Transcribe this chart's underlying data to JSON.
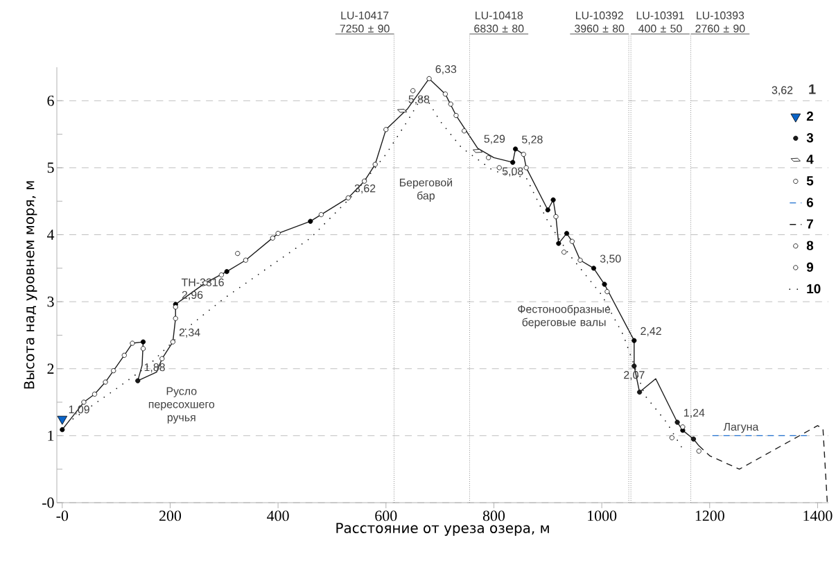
{
  "chart_data": {
    "type": "line",
    "xlabel": "Расстояние от уреза озера, м",
    "ylabel": "Высота над уровнем моря, м",
    "xlim": [
      -10,
      1420
    ],
    "ylim": [
      0,
      6.5
    ],
    "xticks": [
      {
        "value": 0,
        "label": "-0"
      },
      200,
      400,
      600,
      800,
      1000,
      1200,
      1400
    ],
    "yticks": [
      {
        "value": 0,
        "label": "-0"
      },
      {
        "value": 0.5,
        "label": null
      },
      1,
      {
        "value": 1.5,
        "label": null
      },
      2,
      {
        "value": 2.5,
        "label": null
      },
      3,
      {
        "value": 3.5,
        "label": null
      },
      4,
      {
        "value": 4.5,
        "label": null
      },
      5,
      {
        "value": 5.5,
        "label": null
      },
      6
    ],
    "grid": "y",
    "legend": "top right",
    "series": [
      {
        "type": "line",
        "color": "#1a1a1a",
        "line_style": "solid",
        "marker": "none",
        "x": [
          0,
          40,
          60,
          80,
          95,
          115,
          130,
          150,
          148,
          140,
          175,
          185,
          205,
          210,
          210,
          265,
          305,
          340,
          400,
          460,
          530,
          560,
          580,
          600,
          640,
          680,
          710,
          730,
          770,
          800,
          835,
          840,
          855,
          860,
          900,
          910,
          915,
          920,
          935,
          945,
          960,
          985,
          1005,
          1060,
          1060,
          1070,
          1100,
          1140,
          1150,
          1170,
          1180
        ],
        "values": [
          1.09,
          1.5,
          1.62,
          1.8,
          1.97,
          2.2,
          2.38,
          2.4,
          2.05,
          1.82,
          1.95,
          2.15,
          2.4,
          2.75,
          2.96,
          3.28,
          3.45,
          3.62,
          4.02,
          4.2,
          4.55,
          4.8,
          5.05,
          5.57,
          5.88,
          6.33,
          6.1,
          5.78,
          5.29,
          5.15,
          5.08,
          5.28,
          5.2,
          5.0,
          4.37,
          4.52,
          4.27,
          3.87,
          4.02,
          3.9,
          3.62,
          3.5,
          3.26,
          2.42,
          2.04,
          1.65,
          1.85,
          1.2,
          1.08,
          0.95,
          0.85
        ]
      },
      {
        "type": "scatter",
        "color": "#000000",
        "marker": "circle",
        "x": [
          0,
          150,
          210,
          305,
          460,
          835,
          840,
          900,
          910,
          920,
          935,
          985,
          1005,
          1060,
          1150
        ],
        "values": [
          1.09,
          2.4,
          2.96,
          3.45,
          4.2,
          5.08,
          5.28,
          4.37,
          4.52,
          3.87,
          4.02,
          3.5,
          3.26,
          2.42,
          1.08
        ]
      },
      {
        "type": "scatter",
        "name": "2",
        "color": "#0a64c8",
        "marker": "triangle",
        "x": [
          0
        ],
        "values": [
          1.25
        ]
      },
      {
        "type": "scatter",
        "name": "3",
        "color": "#1a1a1a",
        "marker": "circle",
        "x": [
          140,
          1060,
          1070,
          1140,
          1170
        ],
        "values": [
          1.82,
          2.04,
          1.65,
          1.2,
          0.95
        ]
      },
      {
        "type": "scatter",
        "name": "4",
        "color": "#ffffff",
        "marker": "diamond",
        "x": [
          630,
          770
        ],
        "values": [
          5.85,
          5.25
        ]
      },
      {
        "type": "scatter",
        "name": "5",
        "color": "#ffffff",
        "marker": "circle",
        "x": [
          205,
          680
        ],
        "values": [
          2.4,
          6.33
        ]
      },
      {
        "type": "line",
        "name": "6",
        "color": "#1f6fd0",
        "line_style": "dashed",
        "marker": "none",
        "x": [
          1205,
          1380
        ],
        "values": [
          1.0,
          1.0
        ]
      },
      {
        "type": "line",
        "name": "7",
        "color": "#1a1a1a",
        "line_style": "dashed",
        "marker": "none",
        "x": [
          1180,
          1200,
          1255,
          1400,
          1410,
          1418
        ],
        "values": [
          0.85,
          0.7,
          0.5,
          1.15,
          1.1,
          0.0
        ]
      },
      {
        "type": "scatter",
        "name": "8",
        "color": "#ffffff",
        "marker": "circle",
        "x": [
          40,
          80,
          115,
          185,
          210,
          265,
          340,
          400,
          530,
          580,
          600,
          710,
          730,
          790,
          855,
          915,
          945,
          960,
          1010,
          1130
        ],
        "values": [
          1.5,
          1.8,
          2.2,
          2.15,
          2.92,
          3.28,
          3.62,
          4.02,
          4.55,
          5.05,
          5.57,
          6.1,
          5.78,
          5.15,
          5.2,
          4.27,
          3.9,
          3.62,
          3.15,
          0.97
        ]
      },
      {
        "type": "scatter",
        "name": "9",
        "color": "#ffffff",
        "marker": "circle",
        "x": [
          60,
          95,
          130,
          150,
          210,
          295,
          325,
          390,
          480,
          560,
          650,
          720,
          745,
          810,
          860,
          930,
          1150,
          1180
        ],
        "values": [
          1.62,
          1.97,
          2.38,
          2.3,
          2.75,
          3.4,
          3.72,
          3.95,
          4.3,
          4.8,
          6.15,
          5.95,
          5.55,
          5.0,
          5.0,
          3.74,
          1.13,
          0.77
        ]
      },
      {
        "type": "line",
        "name": "10",
        "color": "#1a1a1a",
        "line_style": "dotted",
        "marker": "none",
        "x": [
          20,
          100,
          160,
          230,
          300,
          380,
          460,
          540,
          600,
          640,
          670,
          700,
          740,
          800,
          860,
          900,
          940,
          1000,
          1040,
          1080,
          1120,
          1150
        ],
        "values": [
          1.25,
          1.7,
          2.05,
          2.6,
          3.05,
          3.5,
          3.95,
          4.6,
          5.2,
          5.7,
          6.1,
          5.7,
          5.3,
          4.95,
          4.85,
          4.2,
          3.7,
          3.1,
          2.5,
          1.6,
          1.2,
          0.8
        ]
      }
    ],
    "ref_lines": [
      {
        "axis": "x",
        "value": 615,
        "label": "LU-10417 7250 ± 90",
        "color": "#8c8c8c",
        "line_style": "dotted"
      },
      {
        "axis": "x",
        "value": 755,
        "label": "LU-10418 6830 ± 80",
        "color": "#8c8c8c",
        "line_style": "dotted"
      },
      {
        "axis": "x",
        "value": 1050,
        "label": "LU-10392 3960 ± 80",
        "color": "#8c8c8c",
        "line_style": "dotted"
      },
      {
        "axis": "x",
        "value": 1054,
        "label": "LU-10391 400 ± 50",
        "color": "#8c8c8c",
        "line_style": "dotted"
      },
      {
        "axis": "x",
        "value": 1165,
        "label": "LU-10393 2760 ± 90",
        "color": "#8c8c8c",
        "line_style": "dotted"
      }
    ],
    "annotations": [
      {
        "text": "1,09",
        "x": 0,
        "y": 1.25
      },
      {
        "text": "1,88",
        "x": 140,
        "y": 1.88
      },
      {
        "text": "2,34",
        "x": 205,
        "y": 2.4
      },
      {
        "text": "2,96",
        "x": 210,
        "y": 2.96
      },
      {
        "text": "ТН-3316",
        "x": 210,
        "y": 2.96
      },
      {
        "text": "3,62",
        "x": 530,
        "y": 4.55
      },
      {
        "text": "5,88",
        "x": 630,
        "y": 5.88
      },
      {
        "text": "6,33",
        "x": 680,
        "y": 6.33
      },
      {
        "text": "5,29",
        "x": 770,
        "y": 5.29
      },
      {
        "text": "5,28",
        "x": 840,
        "y": 5.28
      },
      {
        "text": "5,08",
        "x": 835,
        "y": 5.08
      },
      {
        "text": "3,50",
        "x": 985,
        "y": 3.5
      },
      {
        "text": "2,42",
        "x": 1060,
        "y": 2.42
      },
      {
        "text": "2,07",
        "x": 1060,
        "y": 2.04
      },
      {
        "text": "1,24",
        "x": 1140,
        "y": 1.2
      },
      "Береговой бар",
      "Русло пересохшего ручья",
      "Фестонообразные береговые валы",
      "Лагуна",
      "3,62",
      "1"
    ]
  }
}
